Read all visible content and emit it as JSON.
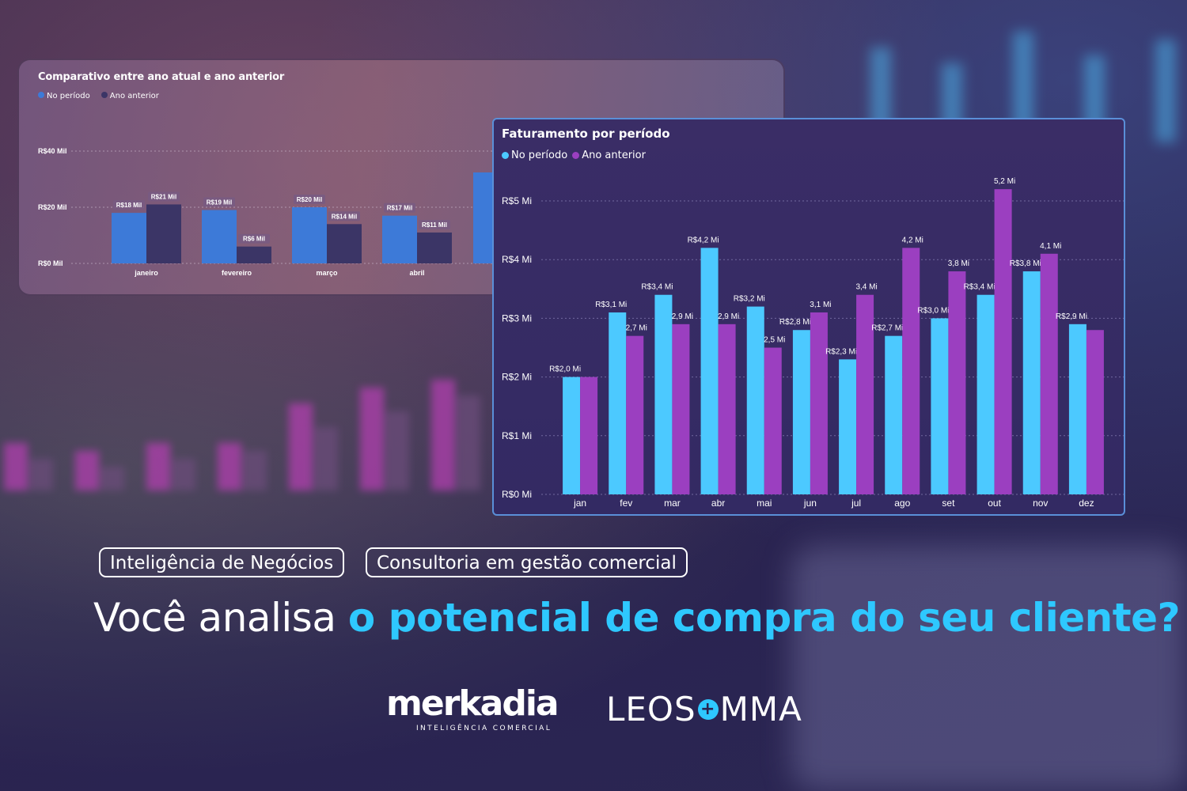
{
  "chart_data": [
    {
      "type": "bar",
      "title": "Faturamento por período",
      "legend": [
        "No período",
        "Ano anterior"
      ],
      "categories": [
        "jan",
        "fev",
        "mar",
        "abr",
        "mai",
        "jun",
        "jul",
        "ago",
        "set",
        "out",
        "nov",
        "dez"
      ],
      "yticks": [
        "R$0 Mi",
        "R$1 Mi",
        "R$2 Mi",
        "R$3 Mi",
        "R$4 Mi",
        "R$5 Mi"
      ],
      "ylim": [
        0,
        5
      ],
      "series": [
        {
          "name": "No período",
          "color": "#4cc9ff",
          "values": [
            2.0,
            3.1,
            3.4,
            4.2,
            3.2,
            2.8,
            2.3,
            2.7,
            3.0,
            3.4,
            3.8,
            2.9
          ],
          "labels": [
            "R$2,0 Mi",
            "R$3,1 Mi",
            "R$3,4 Mi",
            "R$4,2 Mi",
            "R$3,2 Mi",
            "R$2,8 Mi",
            "R$2,3 Mi",
            "R$2,7 Mi",
            "R$3,0 Mi",
            "R$3,4 Mi",
            "R$3,8 Mi",
            "R$2,9 Mi"
          ]
        },
        {
          "name": "Ano anterior",
          "color": "#9b3fc0",
          "values": [
            2.0,
            2.7,
            2.9,
            2.9,
            2.5,
            3.1,
            3.4,
            4.2,
            3.8,
            5.2,
            4.1,
            2.8
          ],
          "labels": [
            "",
            "2,7 Mi",
            "2,9 Mi",
            "2,9 Mi",
            "2,5 Mi",
            "3,1 Mi",
            "3,4 Mi",
            "4,2 Mi",
            "3,8 Mi",
            "5,2 Mi",
            "4,1 Mi",
            ""
          ]
        }
      ],
      "grid": true,
      "legend_position": "top-left"
    },
    {
      "type": "bar",
      "title": "Comparativo entre ano atual e ano anterior",
      "legend": [
        "No período",
        "Ano anterior"
      ],
      "categories": [
        "janeiro",
        "fevereiro",
        "março",
        "abril"
      ],
      "yticks": [
        "R$0 Mil",
        "R$20 Mil",
        "R$40 Mil"
      ],
      "ylim": [
        0,
        40
      ],
      "series": [
        {
          "name": "No período",
          "color": "#3d7ad8",
          "values": [
            18,
            19,
            20,
            17
          ],
          "labels": [
            "R$18 Mil",
            "R$19 Mil",
            "R$20 Mil",
            "R$17 Mil"
          ]
        },
        {
          "name": "Ano anterior",
          "color": "#3b3566",
          "values": [
            21,
            6,
            14,
            11
          ],
          "labels": [
            "R$21 Mil",
            "R$6 Mil",
            "R$14 Mil",
            "R$11 Mil"
          ]
        }
      ],
      "grid": true,
      "legend_position": "top-left"
    }
  ],
  "tags": [
    "Inteligência de Negócios",
    "Consultoria em gestão comercial"
  ],
  "headline": {
    "part1": "Você analisa ",
    "part2": "o potencial  de compra do seu cliente?"
  },
  "logos": {
    "merkadia": "merkadia",
    "merkadia_sub": "INTELIGÊNCIA COMERCIAL",
    "leo_a": "LEOS",
    "leo_plus": "+",
    "leo_b": "MMA"
  },
  "colors": {
    "accent": "#2ec8ff",
    "bar_current": "#4cc9ff",
    "bar_previous": "#9b3fc0"
  }
}
